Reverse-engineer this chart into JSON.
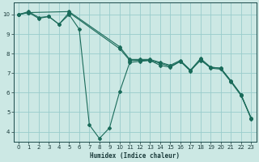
{
  "xlabel": "Humidex (Indice chaleur)",
  "bg_color": "#cce8e4",
  "grid_color": "#99cccc",
  "line_color": "#1a6b5a",
  "xlim": [
    -0.5,
    23.5
  ],
  "ylim": [
    3.5,
    10.6
  ],
  "xticks": [
    0,
    1,
    2,
    3,
    4,
    5,
    6,
    7,
    8,
    9,
    10,
    11,
    12,
    13,
    14,
    15,
    16,
    17,
    18,
    19,
    20,
    21,
    22,
    23
  ],
  "yticks": [
    4,
    5,
    6,
    7,
    8,
    9,
    10
  ],
  "series": [
    {
      "x": [
        0,
        1,
        2,
        3,
        4,
        5,
        6,
        7,
        8,
        9,
        10,
        11,
        12,
        13,
        14,
        15,
        16,
        17,
        18,
        19,
        20,
        21,
        22,
        23
      ],
      "y": [
        10.0,
        10.15,
        9.85,
        9.9,
        9.5,
        10.0,
        9.25,
        4.35,
        3.65,
        4.2,
        6.05,
        7.55,
        7.6,
        7.65,
        7.4,
        7.3,
        7.6,
        7.15,
        7.65,
        7.3,
        7.25,
        6.6,
        5.9,
        4.65
      ]
    },
    {
      "x": [
        0,
        1,
        2,
        3,
        4,
        5,
        10,
        11,
        12,
        13,
        14,
        15,
        16,
        17,
        18,
        19,
        20,
        21,
        22,
        23
      ],
      "y": [
        10.0,
        10.1,
        9.8,
        9.9,
        9.5,
        10.1,
        8.25,
        7.65,
        7.65,
        7.65,
        7.5,
        7.35,
        7.6,
        7.1,
        7.7,
        7.25,
        7.2,
        6.55,
        5.85,
        4.7
      ]
    },
    {
      "x": [
        0,
        1,
        5,
        10,
        11,
        12,
        13,
        14,
        15,
        16,
        17,
        18,
        19,
        20,
        21,
        22,
        23
      ],
      "y": [
        10.0,
        10.1,
        10.15,
        8.35,
        7.7,
        7.7,
        7.7,
        7.55,
        7.4,
        7.65,
        7.15,
        7.75,
        7.3,
        7.25,
        6.6,
        5.9,
        4.7
      ]
    }
  ]
}
